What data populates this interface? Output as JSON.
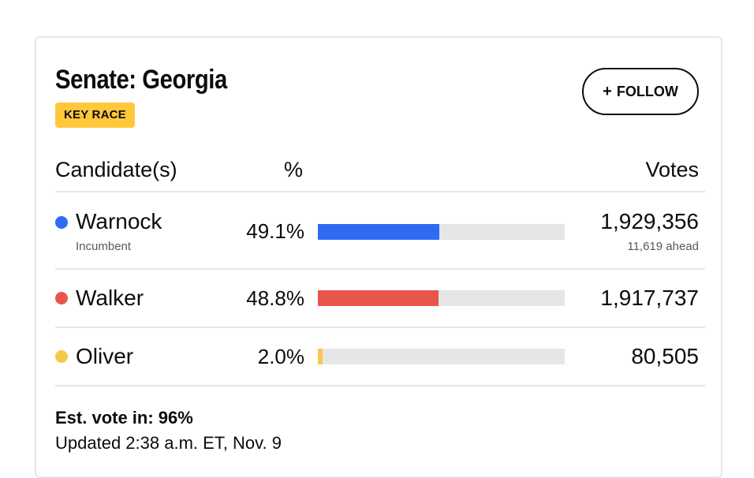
{
  "race": {
    "title": "Senate: Georgia",
    "badge": "KEY RACE",
    "follow_label": "FOLLOW",
    "follow_icon": "plus-icon"
  },
  "table": {
    "headers": {
      "candidate": "Candidate(s)",
      "percent": "%",
      "votes": "Votes"
    },
    "candidates": [
      {
        "name": "Warnock",
        "subtitle": "Incumbent",
        "percent": "49.1%",
        "share": 0.491,
        "votes": "1,929,356",
        "votes_note": "11,619 ahead",
        "color": "#2e6bf2"
      },
      {
        "name": "Walker",
        "percent": "48.8%",
        "share": 0.488,
        "votes": "1,917,737",
        "color": "#e9554a"
      },
      {
        "name": "Oliver",
        "percent": "2.0%",
        "share": 0.02,
        "votes": "80,505",
        "color": "#f7c948"
      }
    ]
  },
  "footer": {
    "est_vote": "Est. vote in: 96%",
    "updated": "Updated 2:38 a.m. ET, Nov. 9"
  }
}
